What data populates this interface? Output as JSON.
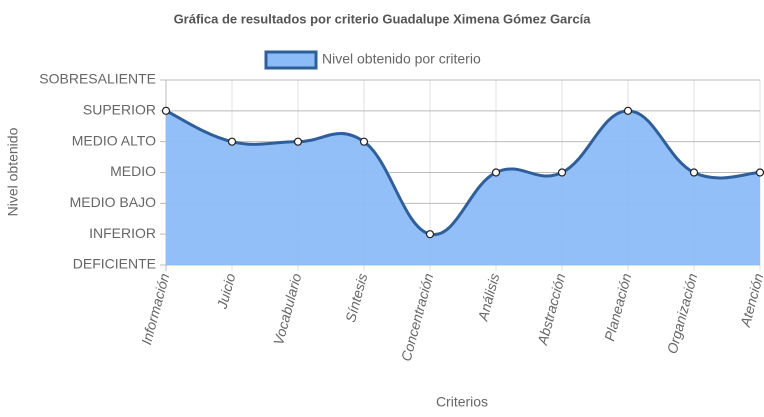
{
  "chart_data": {
    "type": "area",
    "title": "Gráfica de resultados por criterio Guadalupe Ximena Gómez García",
    "x_label": "Criterios",
    "y_label": "Nivel obtenido",
    "categories": [
      "Información",
      "Juicio",
      "Vocabulario",
      "Síntesis",
      "Concentración",
      "Análisis",
      "Abstracción",
      "Planeación",
      "Organización",
      "Atención"
    ],
    "series": [
      {
        "name": "Nivel obtenido por criterio",
        "color": "#2f5f9a",
        "fill": "#8cbcf7",
        "values": [
          5,
          4,
          4,
          4,
          1,
          3,
          3,
          5,
          3,
          3
        ]
      }
    ],
    "ylim": [
      0,
      6
    ],
    "yticks": [
      {
        "value": 0,
        "label": "DEFICIENTE"
      },
      {
        "value": 1,
        "label": "INFERIOR"
      },
      {
        "value": 2,
        "label": "MEDIO BAJO"
      },
      {
        "value": 3,
        "label": "MEDIO"
      },
      {
        "value": 4,
        "label": "MEDIO ALTO"
      },
      {
        "value": 5,
        "label": "SUPERIOR"
      },
      {
        "value": 6,
        "label": "SOBRESALIENTE"
      }
    ],
    "grid": true,
    "legend": "top"
  }
}
